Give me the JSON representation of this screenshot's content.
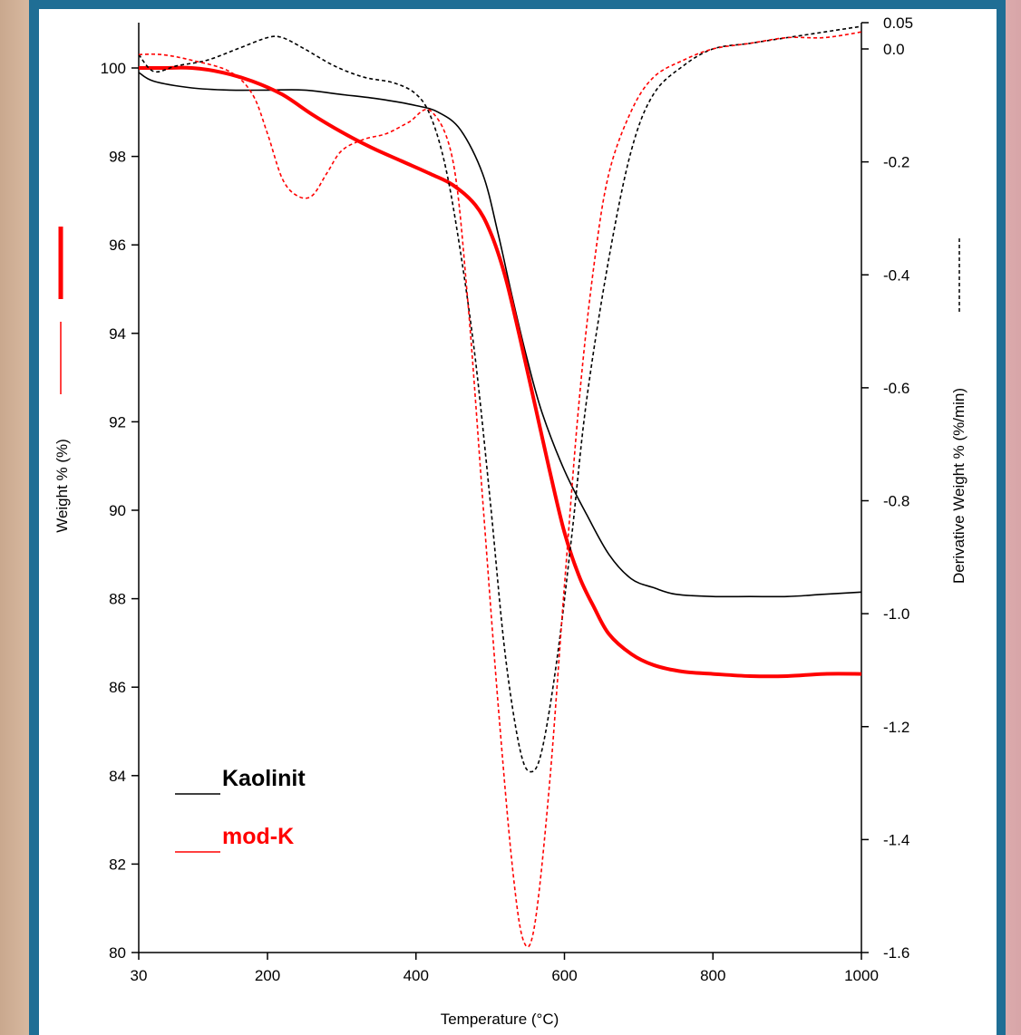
{
  "chart_data": {
    "type": "line",
    "xlabel": "Temperature (°C)",
    "ylabel": "Weight % (%)",
    "y2label": "Derivative Weight % (%/min)",
    "xlim": [
      30,
      1000
    ],
    "ylim": [
      80,
      101
    ],
    "y2lim": [
      -1.6,
      0.05
    ],
    "x_ticks": [
      30,
      200,
      400,
      600,
      800,
      1000
    ],
    "y_ticks": [
      80,
      82,
      84,
      86,
      88,
      90,
      92,
      94,
      96,
      98,
      100
    ],
    "y2_ticks": [
      0.05,
      0.0,
      -0.2,
      -0.4,
      -0.6,
      -0.8,
      -1.0,
      -1.2,
      -1.4,
      -1.6
    ],
    "y2_tick_labels": [
      "0.05",
      "0.0",
      "-0.2",
      "-0.4",
      "-0.6",
      "-0.8",
      "-1.0",
      "-1.2",
      "-1.4",
      "-1.6"
    ],
    "legend": [
      {
        "label": "Kaolinit",
        "color": "#000000"
      },
      {
        "label": "mod-K",
        "color": "#ff0000"
      }
    ],
    "legend_position": "bottom-left",
    "grid": false,
    "series": [
      {
        "name": "Kaolinit",
        "axis": "left",
        "style": "solid",
        "color": "#000000",
        "x": [
          30,
          50,
          100,
          150,
          200,
          250,
          300,
          350,
          400,
          430,
          460,
          490,
          510,
          530,
          550,
          570,
          600,
          630,
          660,
          690,
          720,
          750,
          800,
          850,
          900,
          950,
          1000
        ],
        "y": [
          99.9,
          99.7,
          99.55,
          99.5,
          99.5,
          99.5,
          99.4,
          99.3,
          99.15,
          99.0,
          98.6,
          97.6,
          96.3,
          94.8,
          93.4,
          92.2,
          90.9,
          89.9,
          89.0,
          88.45,
          88.25,
          88.1,
          88.05,
          88.05,
          88.05,
          88.1,
          88.15
        ]
      },
      {
        "name": "mod-K",
        "axis": "left",
        "style": "solid",
        "color": "#ff0000",
        "x": [
          30,
          60,
          100,
          140,
          180,
          220,
          260,
          300,
          340,
          380,
          420,
          450,
          480,
          500,
          520,
          540,
          560,
          580,
          600,
          620,
          640,
          660,
          690,
          720,
          760,
          800,
          850,
          900,
          950,
          1000
        ],
        "y": [
          100.0,
          100.0,
          100.0,
          99.9,
          99.7,
          99.4,
          98.95,
          98.55,
          98.2,
          97.9,
          97.6,
          97.35,
          96.9,
          96.3,
          95.3,
          93.9,
          92.4,
          90.9,
          89.5,
          88.5,
          87.8,
          87.2,
          86.75,
          86.5,
          86.35,
          86.3,
          86.25,
          86.25,
          86.3,
          86.3
        ]
      },
      {
        "name": "Kaolinit derivative",
        "axis": "right",
        "style": "dashed",
        "color": "#000000",
        "x": [
          30,
          50,
          80,
          120,
          160,
          200,
          220,
          250,
          290,
          330,
          370,
          400,
          420,
          440,
          460,
          480,
          500,
          520,
          540,
          555,
          570,
          590,
          610,
          630,
          660,
          690,
          720,
          760,
          800,
          850,
          900,
          950,
          1000
        ],
        "y": [
          -0.01,
          -0.04,
          -0.03,
          -0.02,
          0.0,
          0.02,
          0.02,
          0.0,
          -0.03,
          -0.05,
          -0.06,
          -0.08,
          -0.12,
          -0.21,
          -0.36,
          -0.55,
          -0.8,
          -1.07,
          -1.24,
          -1.28,
          -1.24,
          -1.08,
          -0.86,
          -0.62,
          -0.37,
          -0.18,
          -0.08,
          -0.03,
          0.0,
          0.01,
          0.02,
          0.03,
          0.04
        ]
      },
      {
        "name": "mod-K derivative",
        "axis": "right",
        "style": "dashed",
        "color": "#ff0000",
        "x": [
          30,
          60,
          100,
          150,
          180,
          200,
          220,
          240,
          260,
          280,
          300,
          330,
          360,
          390,
          420,
          450,
          470,
          490,
          510,
          530,
          545,
          560,
          580,
          600,
          620,
          640,
          660,
          690,
          720,
          760,
          800,
          850,
          900,
          950,
          1000
        ],
        "y": [
          -0.01,
          -0.01,
          -0.02,
          -0.04,
          -0.08,
          -0.15,
          -0.23,
          -0.26,
          -0.26,
          -0.22,
          -0.18,
          -0.16,
          -0.15,
          -0.13,
          -0.11,
          -0.2,
          -0.45,
          -0.8,
          -1.15,
          -1.45,
          -1.58,
          -1.55,
          -1.3,
          -0.95,
          -0.62,
          -0.38,
          -0.22,
          -0.11,
          -0.05,
          -0.02,
          0.0,
          0.01,
          0.02,
          0.02,
          0.03
        ]
      }
    ]
  }
}
